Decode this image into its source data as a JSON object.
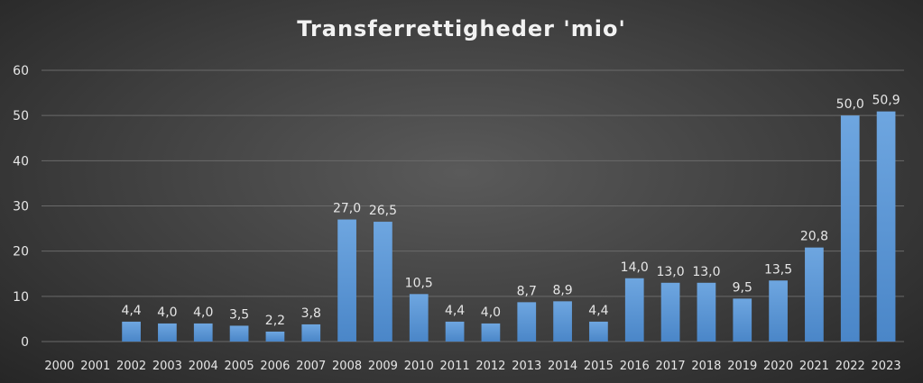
{
  "chart_data": {
    "type": "bar",
    "title": "Transferrettigheder 'mio'",
    "xlabel": "",
    "ylabel": "",
    "ylim": [
      0,
      60
    ],
    "yticks": [
      "0",
      "10",
      "20",
      "30",
      "40",
      "50",
      "60"
    ],
    "grid": true,
    "legend": "none",
    "categories": [
      "2000",
      "2001",
      "2002",
      "2003",
      "2004",
      "2005",
      "2006",
      "2007",
      "2008",
      "2009",
      "2010",
      "2011",
      "2012",
      "2013",
      "2014",
      "2015",
      "2016",
      "2017",
      "2018",
      "2019",
      "2020",
      "2021",
      "2022",
      "2023"
    ],
    "values": [
      0,
      0,
      4.4,
      4.0,
      4.0,
      3.5,
      2.2,
      3.8,
      27.0,
      26.5,
      10.5,
      4.4,
      4.0,
      8.7,
      8.9,
      4.4,
      14.0,
      13.0,
      13.0,
      9.5,
      13.5,
      20.8,
      50.0,
      50.9
    ],
    "data_labels": [
      "",
      "",
      "4,4",
      "4,0",
      "4,0",
      "3,5",
      "2,2",
      "3,8",
      "27,0",
      "26,5",
      "10,5",
      "4,4",
      "4,0",
      "8,7",
      "8,9",
      "4,4",
      "14,0",
      "13,0",
      "13,0",
      "9,5",
      "13,5",
      "20,8",
      "50,0",
      "50,9"
    ],
    "colors": {
      "bar_top": "#6ea6e0",
      "bar_bottom": "#4a86c8",
      "grid": "#6a6a6a",
      "text": "#e6e6e6",
      "title": "#f2f2f2"
    }
  }
}
